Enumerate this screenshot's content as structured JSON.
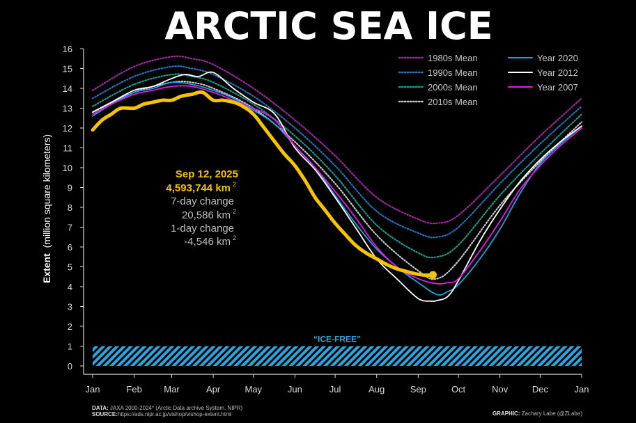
{
  "chart_data": {
    "type": "line",
    "title": "ARCTIC SEA ICE",
    "ylabel_bold": "Extent",
    "ylabel_rest": "(million square kilometers)",
    "ylim": [
      0,
      16
    ],
    "yticks": [
      0,
      1,
      2,
      3,
      4,
      5,
      6,
      7,
      8,
      9,
      10,
      11,
      12,
      13,
      14,
      15,
      16
    ],
    "xlim": [
      1,
      366
    ],
    "month_ticks": [
      {
        "label": "Jan",
        "doy": 1
      },
      {
        "label": "Feb",
        "doy": 32
      },
      {
        "label": "Mar",
        "doy": 60
      },
      {
        "label": "Apr",
        "doy": 91
      },
      {
        "label": "May",
        "doy": 121
      },
      {
        "label": "Jun",
        "doy": 152
      },
      {
        "label": "Jul",
        "doy": 182
      },
      {
        "label": "Aug",
        "doy": 213
      },
      {
        "label": "Sep",
        "doy": 244
      },
      {
        "label": "Oct",
        "doy": 274
      },
      {
        "label": "Nov",
        "doy": 305
      },
      {
        "label": "Dec",
        "doy": 335
      },
      {
        "label": "Jan",
        "doy": 366
      }
    ],
    "grid": false,
    "legend_position": "top-right",
    "ice_free": {
      "label": "“ICE-FREE”",
      "threshold": 1,
      "color": "#2aa7e0"
    },
    "series": [
      {
        "name": "1980s Mean",
        "color": "#9b2a9b",
        "style": "dotted",
        "x": [
          1,
          32,
          60,
          75,
          91,
          121,
          152,
          182,
          213,
          244,
          258,
          274,
          305,
          335,
          366
        ],
        "y": [
          13.9,
          15.1,
          15.6,
          15.5,
          15.2,
          14.0,
          12.4,
          10.6,
          8.5,
          7.4,
          7.2,
          7.6,
          9.6,
          11.6,
          13.5
        ]
      },
      {
        "name": "1990s Mean",
        "color": "#2a70b8",
        "style": "dotted",
        "x": [
          1,
          32,
          60,
          75,
          91,
          121,
          152,
          182,
          213,
          244,
          258,
          274,
          305,
          335,
          366
        ],
        "y": [
          13.5,
          14.6,
          15.1,
          15.0,
          14.7,
          13.6,
          12.0,
          10.1,
          7.8,
          6.7,
          6.5,
          7.0,
          9.2,
          11.2,
          13.1
        ]
      },
      {
        "name": "2000s Mean",
        "color": "#1a9a8c",
        "style": "dotted",
        "x": [
          1,
          32,
          60,
          75,
          91,
          121,
          152,
          182,
          213,
          244,
          258,
          274,
          305,
          335,
          366
        ],
        "y": [
          13.1,
          14.2,
          14.7,
          14.6,
          14.3,
          13.2,
          11.6,
          9.6,
          7.1,
          5.7,
          5.5,
          6.1,
          8.6,
          10.7,
          12.7
        ]
      },
      {
        "name": "2010s Mean",
        "color": "#c8c8c8",
        "style": "dotted",
        "x": [
          1,
          32,
          60,
          75,
          91,
          121,
          152,
          182,
          213,
          244,
          258,
          274,
          305,
          335,
          366
        ],
        "y": [
          12.8,
          13.8,
          14.3,
          14.3,
          14.0,
          13.0,
          11.3,
          9.2,
          6.6,
          4.8,
          4.4,
          5.3,
          8.1,
          10.3,
          12.3
        ]
      },
      {
        "name": "Year 2020",
        "color": "#1aa3dc",
        "style": "solid",
        "x": [
          1,
          15,
          32,
          46,
          60,
          75,
          91,
          106,
          121,
          137,
          152,
          167,
          182,
          197,
          213,
          228,
          244,
          258,
          266,
          274,
          290,
          305,
          320,
          335,
          350,
          366
        ],
        "y": [
          12.6,
          13.2,
          13.8,
          14.0,
          14.3,
          14.2,
          13.9,
          13.5,
          12.9,
          12.2,
          11.1,
          10.0,
          8.6,
          7.2,
          5.9,
          5.0,
          4.2,
          3.6,
          3.75,
          4.1,
          5.4,
          6.9,
          8.7,
          10.2,
          11.2,
          12.1
        ]
      },
      {
        "name": "Year 2012",
        "color": "#ffffff",
        "style": "solid",
        "x": [
          1,
          15,
          32,
          46,
          60,
          70,
          80,
          91,
          106,
          121,
          137,
          152,
          167,
          182,
          197,
          213,
          228,
          244,
          254,
          258,
          266,
          274,
          290,
          305,
          320,
          335,
          350,
          366
        ],
        "y": [
          12.8,
          13.3,
          13.9,
          14.1,
          14.5,
          14.7,
          14.6,
          14.8,
          14.0,
          13.3,
          12.7,
          11.0,
          9.9,
          8.5,
          7.0,
          5.4,
          4.4,
          3.4,
          3.27,
          3.3,
          3.5,
          4.3,
          6.3,
          7.9,
          9.3,
          10.4,
          11.3,
          12.1
        ]
      },
      {
        "name": "Year 2007",
        "color": "#e21ae6",
        "style": "solid",
        "x": [
          1,
          15,
          32,
          46,
          60,
          75,
          91,
          106,
          121,
          137,
          152,
          167,
          182,
          197,
          213,
          228,
          244,
          258,
          266,
          274,
          290,
          305,
          320,
          335,
          350,
          366
        ],
        "y": [
          12.7,
          13.2,
          13.7,
          13.9,
          14.1,
          14.1,
          13.8,
          13.4,
          13.0,
          12.4,
          11.1,
          10.0,
          8.8,
          7.5,
          6.0,
          5.0,
          4.4,
          4.15,
          4.2,
          4.4,
          5.8,
          7.3,
          8.9,
          10.1,
          11.1,
          12.0
        ]
      },
      {
        "name": "2025",
        "color": "#f5c400",
        "style": "bold",
        "x": [
          1,
          8,
          15,
          22,
          32,
          39,
          46,
          53,
          60,
          67,
          75,
          83,
          91,
          98,
          106,
          113,
          121,
          128,
          137,
          144,
          152,
          160,
          167,
          174,
          182,
          190,
          197,
          205,
          213,
          221,
          228,
          236,
          244,
          249,
          255
        ],
        "y": [
          11.9,
          12.4,
          12.7,
          13.0,
          13.0,
          13.2,
          13.3,
          13.4,
          13.4,
          13.6,
          13.7,
          13.8,
          13.4,
          13.4,
          13.3,
          13.1,
          12.7,
          12.1,
          11.3,
          10.7,
          10.1,
          9.3,
          8.5,
          7.9,
          7.2,
          6.6,
          6.1,
          5.7,
          5.4,
          5.1,
          4.9,
          4.75,
          4.62,
          4.58,
          4.59
        ]
      }
    ],
    "annotation": {
      "date": "Sep 12, 2025",
      "extent": "4,593,744 km",
      "change7_label": "7-day change",
      "change7_value": "20,586 km",
      "change1_label": "1-day change",
      "change1_value": "-4,546 km",
      "superscript": "2",
      "highlight_color": "#f5c400"
    },
    "endpoint": {
      "x": 255,
      "y": 4.59
    }
  },
  "footer": {
    "data_label": "DATA:",
    "data_text": " JAXA 2000-2024* (Arctic Data archive System, NIPR)",
    "source_label": "SOURCE:",
    "source_text": "https://ads.nipr.ac.jp/vishop/vishop-extent.html",
    "graphic_label": "GRAPHIC:",
    "graphic_text": " Zachary Labe (@ZLabe)"
  }
}
